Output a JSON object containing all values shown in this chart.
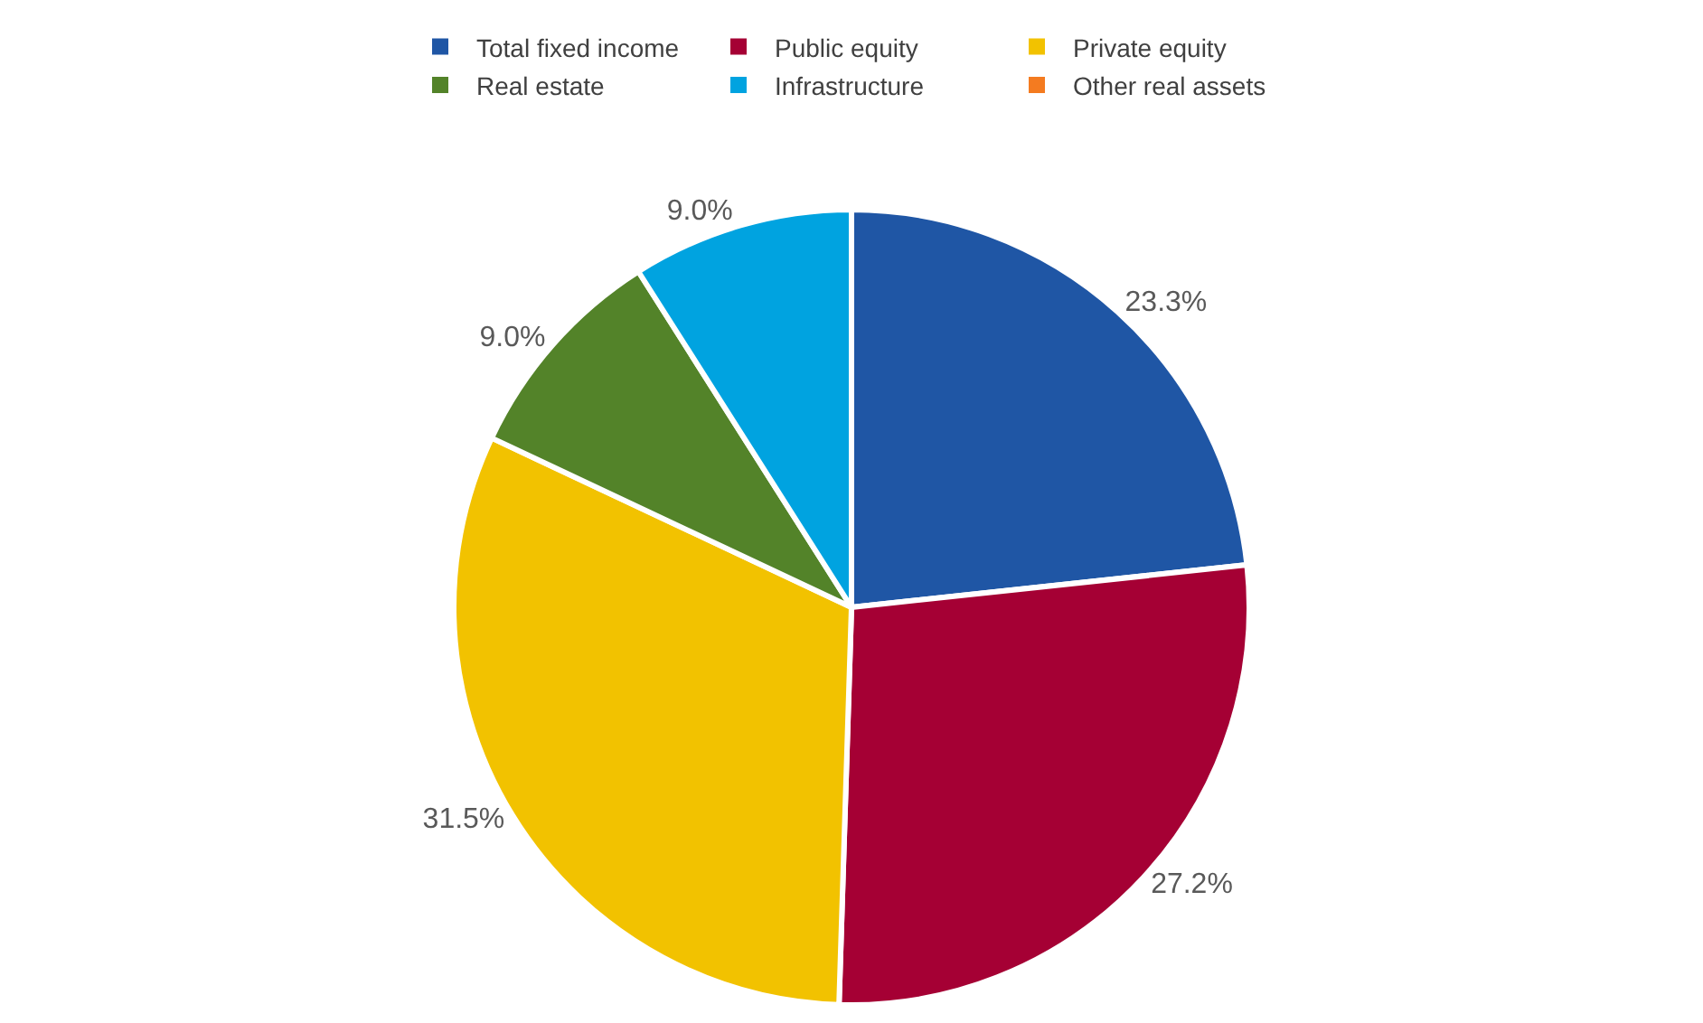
{
  "chart_data": {
    "type": "pie",
    "categories": [
      "Total fixed income",
      "Public equity",
      "Private equity",
      "Real estate",
      "Infrastructure",
      "Other real assets"
    ],
    "values": [
      23.3,
      27.2,
      31.5,
      9.0,
      9.0,
      0
    ],
    "colors": [
      "#1f56a5",
      "#a50034",
      "#f2c200",
      "#538329",
      "#00a3e0",
      "#f47b20"
    ],
    "value_labels": [
      "23.3%",
      "27.2%",
      "31.5%",
      "9.0%",
      "9.0%",
      null
    ],
    "legend": "top"
  }
}
